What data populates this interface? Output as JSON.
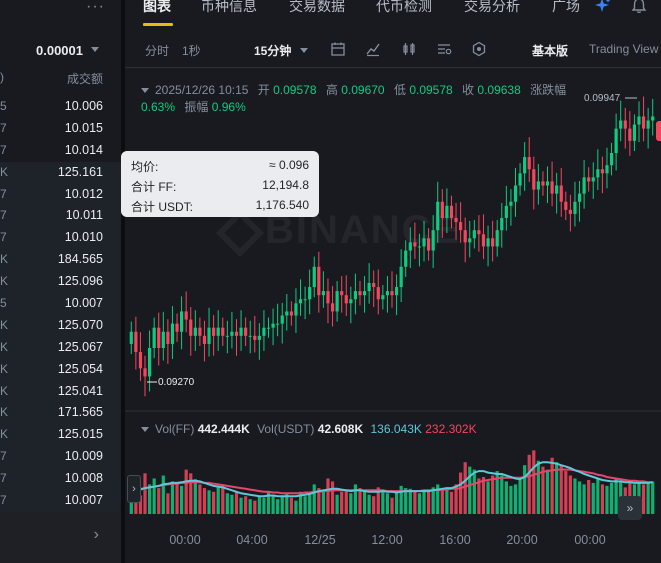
{
  "order_book": {
    "more_label": "···",
    "precision": "0.00001",
    "header_left": ")",
    "header_right": "成交额",
    "rows": [
      {
        "suffix": "5",
        "amount": "10.006"
      },
      {
        "suffix": "7",
        "amount": "10.015"
      },
      {
        "suffix": "7",
        "amount": "10.014"
      },
      {
        "suffix": "K",
        "amount": "125.161"
      },
      {
        "suffix": "7",
        "amount": "10.012"
      },
      {
        "suffix": "7",
        "amount": "10.011"
      },
      {
        "suffix": "7",
        "amount": "10.010"
      },
      {
        "suffix": "K",
        "amount": "184.565"
      },
      {
        "suffix": "K",
        "amount": "125.096"
      },
      {
        "suffix": "5",
        "amount": "10.007"
      },
      {
        "suffix": "K",
        "amount": "125.070"
      },
      {
        "suffix": "K",
        "amount": "125.067"
      },
      {
        "suffix": "K",
        "amount": "125.054"
      },
      {
        "suffix": "K",
        "amount": "125.041"
      },
      {
        "suffix": "K",
        "amount": "171.565"
      },
      {
        "suffix": "K",
        "amount": "125.015"
      },
      {
        "suffix": "7",
        "amount": "10.009"
      },
      {
        "suffix": "7",
        "amount": "10.008"
      },
      {
        "suffix": "7",
        "amount": "10.007"
      }
    ],
    "footer_arrow": "›"
  },
  "tabs": [
    {
      "label": "图表",
      "active": true
    },
    {
      "label": "币种信息",
      "active": false
    },
    {
      "label": "交易数据",
      "active": false
    },
    {
      "label": "代币检测",
      "active": false
    },
    {
      "label": "交易分析",
      "active": false
    },
    {
      "label": "广场",
      "active": false
    }
  ],
  "toolbar": {
    "interval_1": "分时",
    "interval_2": "1秒",
    "interval_selected": "15分钟",
    "basic_version": "基本版",
    "tradingview": "Trading View"
  },
  "ohlc_legend": {
    "datetime": "2025/12/26 10:15",
    "open_label": "开",
    "open": "0.09578",
    "high_label": "高",
    "high": "0.09670",
    "low_label": "低",
    "low": "0.09578",
    "close_label": "收",
    "close": "0.09638",
    "change_label": "涨跌幅",
    "change": "0.63%",
    "amplitude_label": "振幅",
    "amplitude": "0.96%"
  },
  "tooltip": {
    "avg_label": "均价:",
    "avg_value": "≈ 0.096",
    "total_ff_label": "合计 FF:",
    "total_ff_value": "12,194.8",
    "total_usdt_label": "合计 USDT:",
    "total_usdt_value": "1,176.540"
  },
  "price_labels": {
    "high_marker": "0.09947",
    "low_marker": "0.09270"
  },
  "watermark": "BINANCE",
  "volume_legend": {
    "vol_ff_label": "Vol(FF)",
    "vol_ff": "442.444K",
    "vol_usdt_label": "Vol(USDT)",
    "vol_usdt": "42.608K",
    "ma1": "136.043K",
    "ma2": "232.302K"
  },
  "time_ticks": [
    "00:00",
    "04:00",
    "12/25",
    "12:00",
    "16:00",
    "20:00",
    "00:00"
  ],
  "colors": {
    "up": "#0ecb81",
    "down": "#f6465d",
    "ma_fast": "#5ec8d8",
    "ma_slow": "#e8456a",
    "accent": "#f0b90b"
  },
  "chart_data": {
    "type": "candlestick",
    "interval": "15分钟",
    "y_range": [
      0.092,
      0.1
    ],
    "close_series": [
      0.094,
      0.0935,
      0.0931,
      0.0929,
      0.0936,
      0.0941,
      0.0936,
      0.094,
      0.0937,
      0.0942,
      0.094,
      0.0945,
      0.0943,
      0.0939,
      0.0941,
      0.0939,
      0.0937,
      0.0941,
      0.0939,
      0.0941,
      0.0939,
      0.0939,
      0.094,
      0.0939,
      0.0941,
      0.0939,
      0.0939,
      0.0938,
      0.0939,
      0.0941,
      0.0941,
      0.0942,
      0.0942,
      0.0944,
      0.0945,
      0.0944,
      0.0947,
      0.0948,
      0.0948,
      0.0951,
      0.0956,
      0.0949,
      0.095,
      0.0947,
      0.0945,
      0.095,
      0.0949,
      0.0947,
      0.0948,
      0.095,
      0.0949,
      0.095,
      0.0952,
      0.0951,
      0.0948,
      0.0949,
      0.095,
      0.0949,
      0.0951,
      0.0956,
      0.096,
      0.0962,
      0.0961,
      0.0961,
      0.0963,
      0.096,
      0.0965,
      0.0972,
      0.0968,
      0.0971,
      0.0968,
      0.0967,
      0.0965,
      0.0962,
      0.0963,
      0.0965,
      0.0964,
      0.0961,
      0.0963,
      0.0961,
      0.0965,
      0.0968,
      0.0971,
      0.0972,
      0.0976,
      0.0979,
      0.0983,
      0.098,
      0.0975,
      0.0977,
      0.0976,
      0.0977,
      0.0974,
      0.0976,
      0.0972,
      0.097,
      0.0969,
      0.0972,
      0.0974,
      0.0978,
      0.0977,
      0.0978,
      0.098,
      0.0979,
      0.0981,
      0.0984,
      0.099,
      0.0992,
      0.099,
      0.0987,
      0.0991,
      0.0993,
      0.099,
      0.0992,
      0.0993
    ],
    "volume_series": [
      30,
      36,
      25,
      55,
      40,
      48,
      35,
      52,
      28,
      44,
      40,
      38,
      60,
      55,
      47,
      40,
      35,
      32,
      30,
      36,
      40,
      28,
      26,
      30,
      22,
      24,
      20,
      18,
      25,
      22,
      30,
      26,
      20,
      24,
      28,
      22,
      18,
      30,
      24,
      26,
      40,
      35,
      30,
      48,
      44,
      26,
      30,
      32,
      28,
      40,
      35,
      30,
      26,
      24,
      36,
      30,
      28,
      22,
      30,
      38,
      35,
      34,
      30,
      28,
      30,
      32,
      36,
      40,
      34,
      36,
      30,
      40,
      56,
      70,
      64,
      60,
      48,
      50,
      44,
      52,
      58,
      52,
      44,
      38,
      40,
      46,
      66,
      80,
      86,
      72,
      64,
      60,
      76,
      70,
      66,
      58,
      52,
      48,
      44,
      40,
      46,
      42,
      48,
      40,
      38,
      42,
      48,
      44,
      36,
      46,
      40,
      44,
      40,
      42,
      44
    ],
    "ma_fast": [
      30,
      31,
      33,
      35,
      36,
      37,
      38,
      40,
      41,
      42,
      42,
      43,
      44,
      45,
      45,
      44,
      42,
      40,
      38,
      37,
      36,
      34,
      32,
      30,
      28,
      27,
      26,
      25,
      24,
      24,
      25,
      25,
      24,
      24,
      24,
      24,
      24,
      25,
      26,
      27,
      29,
      31,
      32,
      33,
      34,
      34,
      33,
      32,
      31,
      32,
      32,
      31,
      30,
      30,
      30,
      31,
      30,
      30,
      29,
      30,
      31,
      31,
      31,
      31,
      31,
      31,
      32,
      33,
      34,
      35,
      35,
      37,
      40,
      45,
      51,
      56,
      58,
      58,
      56,
      55,
      54,
      54,
      52,
      50,
      48,
      47,
      50,
      56,
      63,
      68,
      70,
      70,
      69,
      68,
      66,
      64,
      62,
      59,
      57,
      54,
      52,
      50,
      48,
      46,
      45,
      44,
      44,
      44,
      43,
      43,
      42,
      42,
      42,
      42,
      43
    ],
    "ma_slow": [
      32,
      33,
      34,
      35,
      36,
      37,
      38,
      39,
      40,
      41,
      41,
      42,
      42,
      43,
      43,
      43,
      42,
      42,
      41,
      40,
      39,
      38,
      37,
      36,
      35,
      34,
      33,
      32,
      31,
      30,
      30,
      29,
      29,
      28,
      28,
      28,
      28,
      28,
      29,
      29,
      30,
      30,
      31,
      31,
      32,
      32,
      32,
      32,
      32,
      32,
      32,
      32,
      32,
      32,
      32,
      32,
      31,
      31,
      31,
      31,
      31,
      31,
      31,
      31,
      32,
      32,
      32,
      32,
      33,
      33,
      34,
      34,
      35,
      37,
      39,
      41,
      43,
      45,
      46,
      47,
      48,
      49,
      49,
      49,
      49,
      49,
      50,
      51,
      53,
      55,
      57,
      58,
      59,
      60,
      60,
      60,
      60,
      59,
      58,
      57,
      56,
      55,
      53,
      52,
      50,
      49,
      48,
      47,
      46,
      45,
      45,
      44,
      44,
      43,
      43
    ]
  }
}
